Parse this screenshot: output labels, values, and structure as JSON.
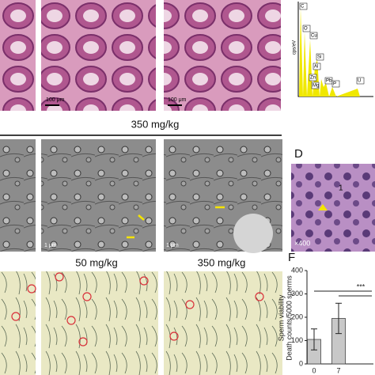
{
  "panel_a": {
    "scale_bars": [
      "100 μm",
      "100 μm"
    ]
  },
  "panel_b_eds": {
    "y_label": "cps/eV",
    "elements": [
      "C",
      "O",
      "Cu",
      "Si",
      "Al",
      "Zn",
      "Pb",
      "Mg",
      "P",
      "U"
    ]
  },
  "group_label_top": "350 mg/kg",
  "panel_c": {
    "scale_bars": [
      "1 μm",
      "1 μm"
    ]
  },
  "panel_d": {
    "letter": "D",
    "magnification": "×400",
    "marker": "1"
  },
  "panel_e": {
    "group_labels": [
      "50 mg/kg",
      "350 mg/kg"
    ]
  },
  "panel_f": {
    "letter": "F",
    "y_label_lines": [
      "Sperm viability",
      "Death counts/5000 sperms"
    ],
    "categories": [
      "0",
      "7"
    ],
    "values": [
      105,
      195
    ],
    "errors": [
      45,
      65
    ],
    "ylim": [
      0,
      400
    ],
    "yticks": [
      0,
      100,
      200,
      300,
      400
    ],
    "significance": "***",
    "color": "#c8c8c8"
  }
}
